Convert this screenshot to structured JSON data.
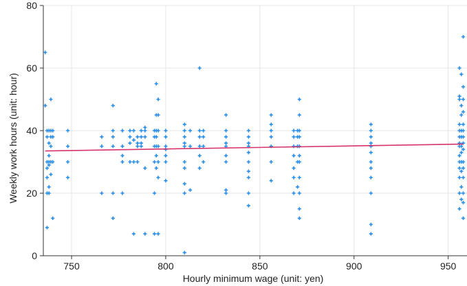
{
  "chart_data": {
    "type": "scatter",
    "title": "",
    "xlabel": "Hourly minimum wage (unit: yen)",
    "ylabel": "Weekly work hours (unit: hour)",
    "xlim": [
      735,
      960
    ],
    "ylim": [
      0,
      80
    ],
    "xticks": [
      750,
      800,
      850,
      900,
      950
    ],
    "yticks": [
      0,
      20,
      40,
      60,
      80
    ],
    "grid": true,
    "legend": "none",
    "colors": {
      "points": "#2a8ee8",
      "fit_line": "#d6336c",
      "grid": "#e6e6e6",
      "axis": "#333333"
    },
    "series": [
      {
        "type": "scatter",
        "points": [
          [
            736,
            65
          ],
          [
            736,
            48
          ],
          [
            737,
            40
          ],
          [
            737,
            38
          ],
          [
            737,
            30
          ],
          [
            737,
            28
          ],
          [
            737,
            25
          ],
          [
            737,
            20
          ],
          [
            737,
            9
          ],
          [
            738,
            40
          ],
          [
            738,
            36
          ],
          [
            738,
            32
          ],
          [
            738,
            30
          ],
          [
            738,
            29
          ],
          [
            738,
            22
          ],
          [
            738,
            20
          ],
          [
            739,
            50
          ],
          [
            739,
            40
          ],
          [
            739,
            38
          ],
          [
            739,
            35
          ],
          [
            739,
            30
          ],
          [
            739,
            26
          ],
          [
            740,
            40
          ],
          [
            740,
            38
          ],
          [
            740,
            30
          ],
          [
            740,
            12
          ],
          [
            748,
            40
          ],
          [
            748,
            35
          ],
          [
            748,
            30
          ],
          [
            748,
            25
          ],
          [
            766,
            38
          ],
          [
            766,
            35
          ],
          [
            766,
            20
          ],
          [
            772,
            48
          ],
          [
            772,
            40
          ],
          [
            772,
            38
          ],
          [
            772,
            35
          ],
          [
            772,
            20
          ],
          [
            772,
            12
          ],
          [
            777,
            40
          ],
          [
            777,
            35
          ],
          [
            777,
            32
          ],
          [
            777,
            30
          ],
          [
            777,
            20
          ],
          [
            781,
            40
          ],
          [
            781,
            38
          ],
          [
            781,
            36
          ],
          [
            781,
            30
          ],
          [
            783,
            40
          ],
          [
            783,
            37
          ],
          [
            783,
            30
          ],
          [
            783,
            7
          ],
          [
            785,
            38
          ],
          [
            785,
            36
          ],
          [
            785,
            35
          ],
          [
            785,
            30
          ],
          [
            787,
            40
          ],
          [
            787,
            38
          ],
          [
            787,
            36
          ],
          [
            787,
            35
          ],
          [
            789,
            41
          ],
          [
            789,
            40
          ],
          [
            789,
            38
          ],
          [
            789,
            28
          ],
          [
            789,
            7
          ],
          [
            794,
            40
          ],
          [
            794,
            38
          ],
          [
            794,
            35
          ],
          [
            794,
            30
          ],
          [
            794,
            20
          ],
          [
            794,
            7
          ],
          [
            795,
            55
          ],
          [
            795,
            45
          ],
          [
            795,
            40
          ],
          [
            795,
            38
          ],
          [
            795,
            35
          ],
          [
            795,
            32
          ],
          [
            795,
            28
          ],
          [
            796,
            50
          ],
          [
            796,
            45
          ],
          [
            796,
            40
          ],
          [
            796,
            35
          ],
          [
            796,
            30
          ],
          [
            796,
            25
          ],
          [
            796,
            7
          ],
          [
            800,
            40
          ],
          [
            800,
            38
          ],
          [
            800,
            35
          ],
          [
            800,
            34
          ],
          [
            800,
            32
          ],
          [
            800,
            30
          ],
          [
            800,
            24
          ],
          [
            810,
            42
          ],
          [
            810,
            40
          ],
          [
            810,
            38
          ],
          [
            810,
            36
          ],
          [
            810,
            35
          ],
          [
            810,
            30
          ],
          [
            810,
            28
          ],
          [
            810,
            23
          ],
          [
            810,
            20
          ],
          [
            810,
            1
          ],
          [
            813,
            40
          ],
          [
            813,
            35
          ],
          [
            813,
            21
          ],
          [
            818,
            60
          ],
          [
            818,
            40
          ],
          [
            818,
            38
          ],
          [
            818,
            35
          ],
          [
            818,
            32
          ],
          [
            818,
            28
          ],
          [
            820,
            40
          ],
          [
            820,
            38
          ],
          [
            820,
            35
          ],
          [
            820,
            30
          ],
          [
            832,
            45
          ],
          [
            832,
            40
          ],
          [
            832,
            38
          ],
          [
            832,
            36
          ],
          [
            832,
            35
          ],
          [
            832,
            32
          ],
          [
            832,
            30
          ],
          [
            832,
            21
          ],
          [
            832,
            20
          ],
          [
            844,
            40
          ],
          [
            844,
            38
          ],
          [
            844,
            36
          ],
          [
            844,
            35
          ],
          [
            844,
            33
          ],
          [
            844,
            30
          ],
          [
            844,
            27
          ],
          [
            844,
            25
          ],
          [
            844,
            20
          ],
          [
            844,
            16
          ],
          [
            856,
            45
          ],
          [
            856,
            42
          ],
          [
            856,
            40
          ],
          [
            856,
            38
          ],
          [
            856,
            35
          ],
          [
            856,
            30
          ],
          [
            856,
            24
          ],
          [
            868,
            40
          ],
          [
            868,
            38
          ],
          [
            868,
            35
          ],
          [
            868,
            32
          ],
          [
            868,
            28
          ],
          [
            868,
            25
          ],
          [
            868,
            20
          ],
          [
            870,
            40
          ],
          [
            870,
            38
          ],
          [
            870,
            35
          ],
          [
            870,
            30
          ],
          [
            870,
            22
          ],
          [
            871,
            50
          ],
          [
            871,
            45
          ],
          [
            871,
            40
          ],
          [
            871,
            38
          ],
          [
            871,
            35
          ],
          [
            871,
            32
          ],
          [
            871,
            30
          ],
          [
            871,
            25
          ],
          [
            871,
            20
          ],
          [
            871,
            15
          ],
          [
            871,
            12
          ],
          [
            909,
            42
          ],
          [
            909,
            40
          ],
          [
            909,
            38
          ],
          [
            909,
            36
          ],
          [
            909,
            35
          ],
          [
            909,
            33
          ],
          [
            909,
            30
          ],
          [
            909,
            28
          ],
          [
            909,
            25
          ],
          [
            909,
            20
          ],
          [
            909,
            10
          ],
          [
            909,
            7
          ],
          [
            956,
            60
          ],
          [
            956,
            51
          ],
          [
            956,
            50
          ],
          [
            956,
            42
          ],
          [
            956,
            40
          ],
          [
            956,
            38
          ],
          [
            956,
            36
          ],
          [
            956,
            35
          ],
          [
            956,
            32
          ],
          [
            956,
            30
          ],
          [
            956,
            28
          ],
          [
            956,
            25
          ],
          [
            956,
            20
          ],
          [
            956,
            15
          ],
          [
            957,
            58
          ],
          [
            957,
            48
          ],
          [
            957,
            45
          ],
          [
            957,
            40
          ],
          [
            957,
            38
          ],
          [
            957,
            35
          ],
          [
            957,
            33
          ],
          [
            957,
            30
          ],
          [
            957,
            27
          ],
          [
            957,
            22
          ],
          [
            957,
            18
          ],
          [
            958,
            70
          ],
          [
            958,
            54
          ],
          [
            958,
            50
          ],
          [
            958,
            46
          ],
          [
            958,
            42
          ],
          [
            958,
            40
          ],
          [
            958,
            38
          ],
          [
            958,
            36
          ],
          [
            958,
            34
          ],
          [
            958,
            30
          ],
          [
            958,
            28
          ],
          [
            958,
            25
          ],
          [
            958,
            20
          ],
          [
            958,
            17
          ],
          [
            958,
            12
          ]
        ]
      },
      {
        "type": "line",
        "points": [
          [
            736,
            33.5
          ],
          [
            958,
            35.7
          ]
        ]
      }
    ]
  }
}
